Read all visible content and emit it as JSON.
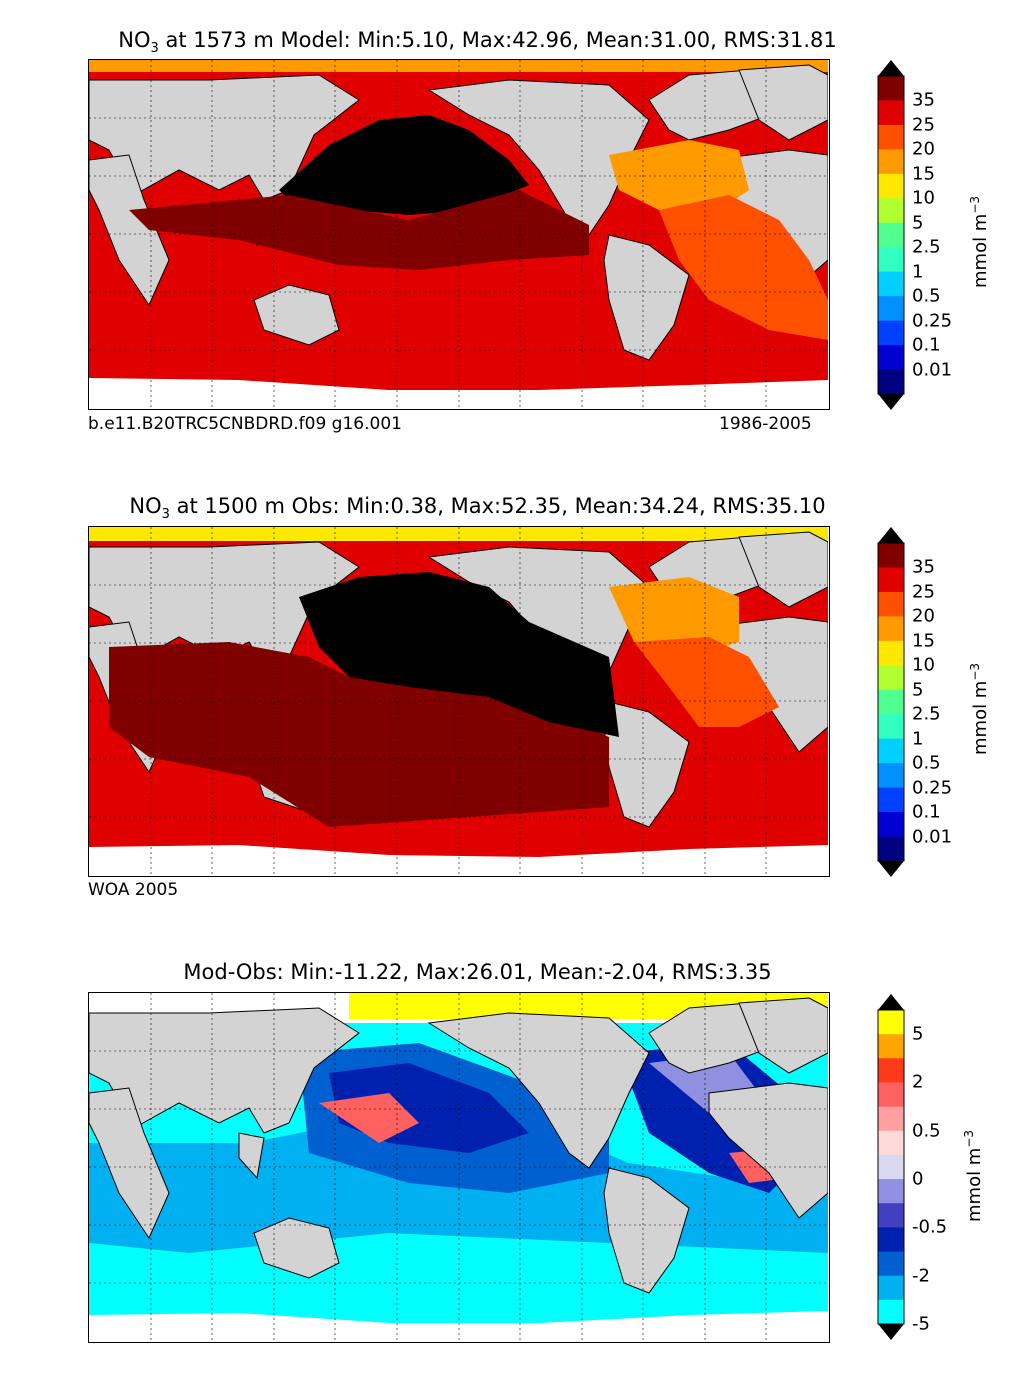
{
  "panels": [
    {
      "title_prefix": "NO",
      "title_sub": "3",
      "title_rest": " at 1573 m Model: Min:5.10, Max:42.96, Mean:31.00, RMS:31.81",
      "caption_left": "b.e11.B20TRC5CNBDRD.f09 g16.001",
      "caption_right": "1986-2005",
      "colorbar": {
        "labels": [
          "35",
          "25",
          "20",
          "15",
          "10",
          "5",
          "2.5",
          "1",
          "0.5",
          "0.25",
          "0.1",
          "0.01"
        ],
        "colors": [
          "#800000",
          "#e00000",
          "#ff5000",
          "#ff9a00",
          "#ffe800",
          "#b0ff30",
          "#50ff90",
          "#30ffc0",
          "#00d0ff",
          "#0090ff",
          "#0040ff",
          "#0000d0",
          "#000080"
        ],
        "unit": "mmol m",
        "unit_sup": "−3"
      }
    },
    {
      "title_prefix": "NO",
      "title_sub": "3",
      "title_rest": " at 1500 m Obs: Min:0.38, Max:52.35, Mean:34.24, RMS:35.10",
      "caption_left": "WOA 2005",
      "caption_right": "",
      "colorbar": {
        "labels": [
          "35",
          "25",
          "20",
          "15",
          "10",
          "5",
          "2.5",
          "1",
          "0.5",
          "0.25",
          "0.1",
          "0.01"
        ],
        "colors": [
          "#800000",
          "#e00000",
          "#ff5000",
          "#ff9a00",
          "#ffe800",
          "#b0ff30",
          "#50ff90",
          "#30ffc0",
          "#00d0ff",
          "#0090ff",
          "#0040ff",
          "#0000d0",
          "#000080"
        ],
        "unit": "mmol m",
        "unit_sup": "−3"
      }
    },
    {
      "title_prefix": "",
      "title_sub": "",
      "title_rest": "Mod-Obs: Min:-11.22, Max:26.01, Mean:-2.04, RMS:3.35",
      "caption_left": "",
      "caption_right": "",
      "colorbar": {
        "labels": [
          "5",
          "",
          "2",
          "",
          "0.5",
          "",
          "0",
          "",
          "-0.5",
          "",
          "-2",
          "",
          "-5"
        ],
        "colors": [
          "#ffff00",
          "#ffa500",
          "#ff3a1a",
          "#ff6060",
          "#ffa0a0",
          "#ffd8d8",
          "#d8d8f0",
          "#9090e0",
          "#4040c0",
          "#0020b0",
          "#0060d0",
          "#00b0f0",
          "#00ffff"
        ],
        "unit": "mmol m",
        "unit_sup": "−3"
      }
    }
  ],
  "colors": {
    "land": "#d3d3d3",
    "ice": "#ffffff",
    "black_region": "#000000"
  }
}
